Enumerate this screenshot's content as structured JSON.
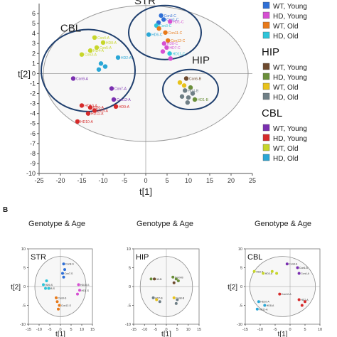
{
  "panel_b_label": "B",
  "colors": {
    "wt_young": "#2f6fd6",
    "hd_young": "#d64fd2",
    "wt_old": "#e8a21a",
    "hd_old": "#2ec4d9",
    "hip_wt_young": "#6e4a2e",
    "hip_hd_young": "#6a8f3a",
    "hip_wt_old": "#e8c21a",
    "hip_hd_old": "#6f7f86",
    "cbl_wt_young": "#7a2fb0",
    "cbl_hd_young": "#d62a2a",
    "cbl_wt_old": "#c7d62a",
    "cbl_hd_old": "#2aa7d6",
    "str_wt_old": "#e87a1a"
  },
  "legend": {
    "groups": [
      {
        "title": "",
        "items": [
          {
            "label": "WT, Young",
            "color_key": "wt_young"
          },
          {
            "label": "HD, Young",
            "color_key": "hd_young"
          },
          {
            "label": "WT, Old",
            "color_key": "str_wt_old"
          },
          {
            "label": "HD, Old",
            "color_key": "hd_old"
          }
        ]
      },
      {
        "title": "HIP",
        "items": [
          {
            "label": "WT, Young",
            "color_key": "hip_wt_young"
          },
          {
            "label": "HD, Young",
            "color_key": "hip_hd_young"
          },
          {
            "label": "WT, Old",
            "color_key": "hip_wt_old"
          },
          {
            "label": "HD, Old",
            "color_key": "hip_hd_old"
          }
        ]
      },
      {
        "title": "CBL",
        "items": [
          {
            "label": "WT, Young",
            "color_key": "cbl_wt_young"
          },
          {
            "label": "HD, Young",
            "color_key": "cbl_hd_young"
          },
          {
            "label": "WT, Old",
            "color_key": "cbl_wt_old"
          },
          {
            "label": "HD, Old",
            "color_key": "cbl_hd_old"
          }
        ]
      }
    ]
  },
  "chart_data": [
    {
      "type": "scatter",
      "panel": "A",
      "xlabel": "t[1]",
      "ylabel": "t[2]",
      "xlim": [
        -25,
        25
      ],
      "ylim": [
        -10,
        7
      ],
      "xticks": [
        -25,
        -20,
        -15,
        -10,
        -5,
        0,
        5,
        10,
        15,
        20,
        25
      ],
      "yticks": [
        -10,
        -9,
        -8,
        -7,
        -6,
        -5,
        -4,
        -3,
        -2,
        -1,
        0,
        1,
        2,
        3,
        4,
        5,
        6
      ],
      "grid": false,
      "ellipse": {
        "cx": 0,
        "cy": 0,
        "rx": 24,
        "ry": 6.8
      },
      "group_circles": [
        {
          "label": "STR",
          "cx": 4.5,
          "cy": 4.1,
          "rx": 8.5,
          "ry": 2.7
        },
        {
          "label": "CBL",
          "cx": -13.5,
          "cy": 0.3,
          "rx": 11.0,
          "ry": 4.1
        },
        {
          "label": "HIP",
          "cx": 10.5,
          "cy": -1.6,
          "rx": 6.5,
          "ry": 2.0
        }
      ],
      "points": [
        {
          "x": 3.6,
          "y": 5.8,
          "label": "Con3-C",
          "color_key": "wt_young"
        },
        {
          "x": 4.2,
          "y": 5.4,
          "label": "Con1-C",
          "color_key": "wt_young"
        },
        {
          "x": 5.7,
          "y": 5.2,
          "label": "HD1-C",
          "color_key": "hd_young"
        },
        {
          "x": 3.0,
          "y": 5.1,
          "label": "",
          "color_key": "wt_young"
        },
        {
          "x": 2.5,
          "y": 4.8,
          "label": "Con3-C",
          "color_key": "hd_old"
        },
        {
          "x": 3.1,
          "y": 4.5,
          "label": "",
          "color_key": "str_wt_old"
        },
        {
          "x": 4.6,
          "y": 4.1,
          "label": "Con11-C",
          "color_key": "str_wt_old"
        },
        {
          "x": 5.2,
          "y": 3.3,
          "label": "Con12-C",
          "color_key": "str_wt_old"
        },
        {
          "x": 4.3,
          "y": 3.0,
          "label": "HD8-C",
          "color_key": "hd_young"
        },
        {
          "x": 4.9,
          "y": 2.6,
          "label": "HD7-C",
          "color_key": "hd_young"
        },
        {
          "x": 4.0,
          "y": 2.2,
          "label": "",
          "color_key": "hd_young"
        },
        {
          "x": 5.6,
          "y": 2.0,
          "label": "HD11-C",
          "color_key": "hd_old"
        },
        {
          "x": 5.8,
          "y": 1.5,
          "label": "",
          "color_key": "hd_young"
        },
        {
          "x": 0.7,
          "y": 3.9,
          "label": "HD6-C",
          "color_key": "cbl_hd_old"
        },
        {
          "x": -12.0,
          "y": 3.6,
          "label": "Con4-A",
          "color_key": "cbl_wt_old"
        },
        {
          "x": -10.0,
          "y": 3.1,
          "label": "HD8-A",
          "color_key": "cbl_wt_old"
        },
        {
          "x": -11.5,
          "y": 2.6,
          "label": "Con5-A",
          "color_key": "cbl_wt_old"
        },
        {
          "x": -13.0,
          "y": 2.3,
          "label": "HD4-A",
          "color_key": "cbl_wt_old"
        },
        {
          "x": -15.0,
          "y": 1.9,
          "label": "Con3-A",
          "color_key": "cbl_wt_old"
        },
        {
          "x": -6.5,
          "y": 1.6,
          "label": "HD2-A",
          "color_key": "cbl_hd_old"
        },
        {
          "x": -10.5,
          "y": 1.0,
          "label": "",
          "color_key": "cbl_hd_old"
        },
        {
          "x": -9.5,
          "y": 0.7,
          "label": "",
          "color_key": "cbl_hd_old"
        },
        {
          "x": -11.0,
          "y": 0.4,
          "label": "",
          "color_key": "cbl_hd_old"
        },
        {
          "x": -17.0,
          "y": -0.5,
          "label": "Con9-A",
          "color_key": "cbl_wt_young"
        },
        {
          "x": -8.0,
          "y": -1.5,
          "label": "Con7-A",
          "color_key": "cbl_wt_young"
        },
        {
          "x": -7.5,
          "y": -2.6,
          "label": "Con12-A",
          "color_key": "cbl_wt_young"
        },
        {
          "x": -15.0,
          "y": -3.2,
          "label": "HD10-A",
          "color_key": "cbl_hd_young"
        },
        {
          "x": -13.0,
          "y": -3.4,
          "label": "HD6-A",
          "color_key": "cbl_hd_young"
        },
        {
          "x": -12.0,
          "y": -3.7,
          "label": "HD9-A",
          "color_key": "cbl_hd_young"
        },
        {
          "x": -7.0,
          "y": -3.3,
          "label": "HD9-A",
          "color_key": "cbl_hd_young"
        },
        {
          "x": -13.5,
          "y": -4.0,
          "label": "HD11-A",
          "color_key": "cbl_hd_young"
        },
        {
          "x": -16.0,
          "y": -4.8,
          "label": "HD10-A",
          "color_key": "cbl_hd_young"
        },
        {
          "x": 9.5,
          "y": -0.5,
          "label": "Con6-B",
          "color_key": "hip_wt_young"
        },
        {
          "x": 8.0,
          "y": -0.9,
          "label": "",
          "color_key": "hip_wt_old"
        },
        {
          "x": 9.0,
          "y": -1.2,
          "label": "",
          "color_key": "hip_wt_old"
        },
        {
          "x": 10.5,
          "y": -1.4,
          "label": "",
          "color_key": "hip_hd_young"
        },
        {
          "x": 9.2,
          "y": -1.7,
          "label": "HD4-B",
          "color_key": "hip_hd_old"
        },
        {
          "x": 11.0,
          "y": -2.0,
          "label": "",
          "color_key": "hip_hd_old"
        },
        {
          "x": 8.5,
          "y": -2.3,
          "label": "",
          "color_key": "hip_hd_old"
        },
        {
          "x": 10.0,
          "y": -2.4,
          "label": "",
          "color_key": "hip_hd_old"
        },
        {
          "x": 11.5,
          "y": -2.6,
          "label": "HD1-B",
          "color_key": "hip_hd_young"
        },
        {
          "x": 9.8,
          "y": -2.9,
          "label": "",
          "color_key": "hip_hd_old"
        }
      ]
    },
    {
      "type": "scatter",
      "panel": "B-STR",
      "title": "Genotype & Age",
      "group_label": "STR",
      "xlabel": "t[1]",
      "ylabel": "t[2]",
      "xlim": [
        -15,
        15
      ],
      "ylim": [
        -10,
        10
      ],
      "xticks": [
        -15,
        -10,
        -5,
        0,
        5,
        10,
        15
      ],
      "xtick_labels": [
        "-15",
        "-10",
        "-5",
        "0",
        "5",
        "10",
        "15"
      ],
      "yticks": [
        -10,
        -5,
        0,
        5,
        10
      ],
      "ellipse": {
        "cx": 0,
        "cy": 0,
        "rx": 12,
        "ry": 8
      },
      "points": [
        {
          "x": 1.5,
          "y": 6.0,
          "label": "Con8-S",
          "color_key": "wt_young"
        },
        {
          "x": 2.0,
          "y": 4.5,
          "label": "",
          "color_key": "wt_young"
        },
        {
          "x": 1.0,
          "y": 3.5,
          "label": "Con7-S",
          "color_key": "wt_young"
        },
        {
          "x": 1.5,
          "y": 2.5,
          "label": "",
          "color_key": "wt_young"
        },
        {
          "x": -6.5,
          "y": 1.5,
          "label": "",
          "color_key": "hd_old"
        },
        {
          "x": -8.0,
          "y": 0.5,
          "label": "HD9-S",
          "color_key": "hd_old"
        },
        {
          "x": -7.0,
          "y": -0.5,
          "label": "HD8-S",
          "color_key": "hd_old"
        },
        {
          "x": -5.5,
          "y": -0.5,
          "label": "",
          "color_key": "hd_old"
        },
        {
          "x": 8.5,
          "y": 0.5,
          "label": "HD10-S",
          "color_key": "hd_young"
        },
        {
          "x": 9.0,
          "y": -1.0,
          "label": "HD1-S",
          "color_key": "hd_young"
        },
        {
          "x": 8.0,
          "y": -2.0,
          "label": "",
          "color_key": "hd_young"
        },
        {
          "x": -2.0,
          "y": -3.0,
          "label": "Con9-S",
          "color_key": "str_wt_old"
        },
        {
          "x": -1.5,
          "y": -4.0,
          "label": "",
          "color_key": "str_wt_old"
        },
        {
          "x": -0.5,
          "y": -5.0,
          "label": "Con12-S",
          "color_key": "str_wt_old"
        },
        {
          "x": -1.0,
          "y": -6.0,
          "label": "",
          "color_key": "str_wt_old"
        }
      ]
    },
    {
      "type": "scatter",
      "panel": "B-HIP",
      "title": "Genotype & Age",
      "group_label": "HIP",
      "xlabel": "t[1]",
      "ylabel": "",
      "xlim": [
        -15,
        15
      ],
      "ylim": [
        -10,
        10
      ],
      "xticks": [
        -15,
        -10,
        -5,
        0,
        5,
        10,
        15
      ],
      "xtick_labels": [
        "-15",
        "-10",
        "-5",
        "0",
        "5",
        "10",
        "15"
      ],
      "yticks": [
        -10,
        -5,
        0,
        5,
        10
      ],
      "ellipse": {
        "cx": 0,
        "cy": 0,
        "rx": 12,
        "ry": 8
      },
      "points": [
        {
          "x": -7.0,
          "y": 2.0,
          "label": "HD10-B",
          "color_key": "hip_hd_young"
        },
        {
          "x": -5.5,
          "y": 2.0,
          "label": "",
          "color_key": "hip_wt_young"
        },
        {
          "x": 3.0,
          "y": 2.5,
          "label": "Con9-B",
          "color_key": "hip_hd_young"
        },
        {
          "x": 4.5,
          "y": 2.0,
          "label": "",
          "color_key": "hip_hd_young"
        },
        {
          "x": 5.5,
          "y": 1.5,
          "label": "",
          "color_key": "hip_hd_young"
        },
        {
          "x": 3.5,
          "y": 1.0,
          "label": "",
          "color_key": "hip_wt_young"
        },
        {
          "x": -6.0,
          "y": -3.0,
          "label": "HD7-B",
          "color_key": "hip_hd_old"
        },
        {
          "x": -4.5,
          "y": -3.5,
          "label": "",
          "color_key": "hip_wt_old"
        },
        {
          "x": -3.0,
          "y": -4.0,
          "label": "",
          "color_key": "hip_hd_old"
        },
        {
          "x": 3.5,
          "y": -3.0,
          "label": "Con8-B",
          "color_key": "hip_wt_old"
        },
        {
          "x": 5.0,
          "y": -3.5,
          "label": "",
          "color_key": "hip_hd_old"
        },
        {
          "x": 4.5,
          "y": -4.5,
          "label": "",
          "color_key": "hip_hd_old"
        }
      ]
    },
    {
      "type": "scatter",
      "panel": "B-CBL",
      "title": "Genotype & Age",
      "group_label": "CBL",
      "xlabel": "t[1]",
      "ylabel": "t[2]",
      "xlim": [
        -15,
        10
      ],
      "ylim": [
        -10,
        10
      ],
      "xticks": [
        -15,
        -10,
        -5,
        0,
        5,
        10
      ],
      "xtick_labels": [
        "-15",
        "-10",
        "-5",
        "0",
        "5",
        "10"
      ],
      "yticks": [
        -10,
        -5,
        0,
        5,
        10
      ],
      "ellipse": {
        "cx": -2.5,
        "cy": 0,
        "rx": 11,
        "ry": 8
      },
      "points": [
        {
          "x": -1.0,
          "y": 6.0,
          "label": "Con8-A",
          "color_key": "cbl_wt_young"
        },
        {
          "x": 2.5,
          "y": 5.0,
          "label": "Con6-A",
          "color_key": "cbl_wt_young"
        },
        {
          "x": 3.0,
          "y": 3.5,
          "label": "Con4-A",
          "color_key": "cbl_wt_young"
        },
        {
          "x": -12.0,
          "y": 4.0,
          "label": "HD2-A",
          "color_key": "cbl_wt_old"
        },
        {
          "x": -9.0,
          "y": 3.5,
          "label": "HD3-A",
          "color_key": "cbl_wt_old"
        },
        {
          "x": -6.0,
          "y": 4.0,
          "label": "",
          "color_key": "cbl_wt_old"
        },
        {
          "x": -4.5,
          "y": 3.5,
          "label": "",
          "color_key": "cbl_wt_old"
        },
        {
          "x": -10.5,
          "y": -4.0,
          "label": "HD10-A",
          "color_key": "cbl_hd_old"
        },
        {
          "x": -8.5,
          "y": -5.0,
          "label": "HD8-A",
          "color_key": "cbl_hd_old"
        },
        {
          "x": -11.0,
          "y": -6.0,
          "label": "HD11-A",
          "color_key": "cbl_hd_old"
        },
        {
          "x": -3.5,
          "y": -2.0,
          "label": "Con12-A",
          "color_key": "cbl_hd_young"
        },
        {
          "x": 3.0,
          "y": -3.5,
          "label": "HD7-A",
          "color_key": "cbl_hd_young"
        },
        {
          "x": 5.0,
          "y": -4.0,
          "label": "",
          "color_key": "cbl_hd_young"
        },
        {
          "x": 4.0,
          "y": -5.0,
          "label": "",
          "color_key": "cbl_hd_young"
        }
      ]
    }
  ]
}
